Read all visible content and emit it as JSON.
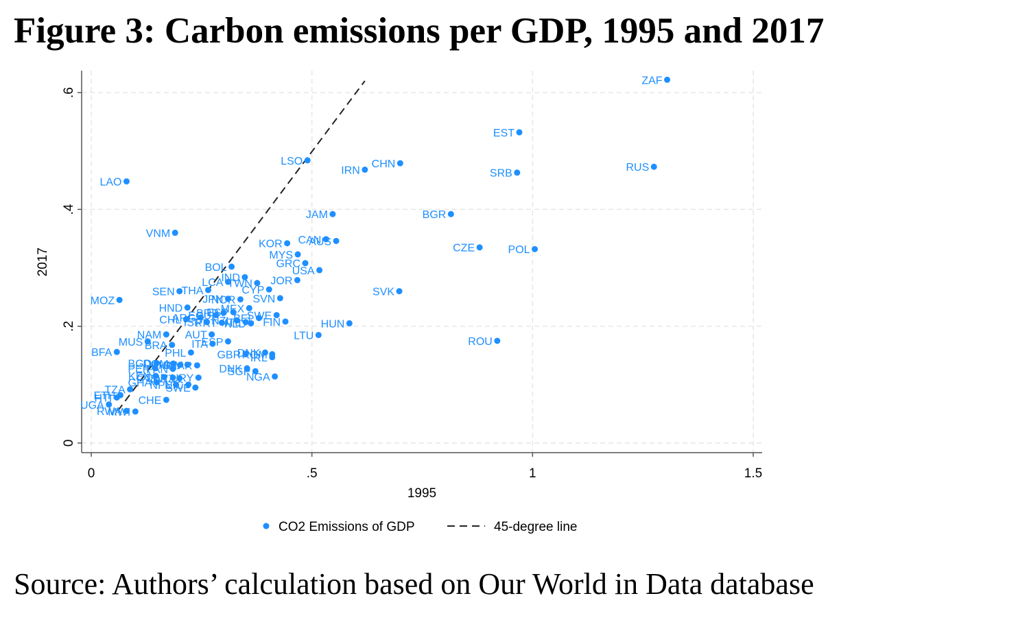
{
  "figure": {
    "title": "Figure 3: Carbon emissions per GDP, 1995 and 2017",
    "source": "Source: Authors’ calculation based on Our World in Data database"
  },
  "colors": {
    "points": "#1e8fff",
    "gridline": "#e6e6e6",
    "axis": "#555555",
    "reference_line": "#222222"
  },
  "chart_data": {
    "type": "scatter",
    "title": "",
    "xlabel": "1995",
    "ylabel": "2017",
    "xlim": [
      -0.05,
      1.5
    ],
    "ylim": [
      -0.02,
      0.63
    ],
    "xticks": [
      0,
      0.5,
      1,
      1.5
    ],
    "xtick_labels": [
      "0",
      ".5",
      "1",
      "1.5"
    ],
    "yticks": [
      0,
      0.2,
      0.4,
      0.6
    ],
    "ytick_labels": [
      "0",
      ".2",
      ".4",
      ".6"
    ],
    "grid": true,
    "legend": {
      "position": "bottom",
      "entries": [
        "CO2 Emissions of GDP",
        "45-degree line"
      ]
    },
    "reference_line": {
      "name": "45-degree line",
      "x": [
        0.06,
        0.62
      ],
      "y": [
        0.055,
        0.62
      ]
    },
    "series": [
      {
        "name": "CO2 Emissions of GDP",
        "points": [
          {
            "label": "ZAF",
            "x": 1.305,
            "y": 0.622
          },
          {
            "label": "EST",
            "x": 0.97,
            "y": 0.532
          },
          {
            "label": "RUS",
            "x": 1.275,
            "y": 0.473
          },
          {
            "label": "SRB",
            "x": 0.965,
            "y": 0.463
          },
          {
            "label": "CHN",
            "x": 0.7,
            "y": 0.479
          },
          {
            "label": "IRN",
            "x": 0.62,
            "y": 0.468
          },
          {
            "label": "LSO",
            "x": 0.49,
            "y": 0.484
          },
          {
            "label": "LAO",
            "x": 0.08,
            "y": 0.448
          },
          {
            "label": "BGR",
            "x": 0.815,
            "y": 0.392
          },
          {
            "label": "JAM",
            "x": 0.547,
            "y": 0.392
          },
          {
            "label": "VNM",
            "x": 0.19,
            "y": 0.36
          },
          {
            "label": "CZE",
            "x": 0.88,
            "y": 0.335
          },
          {
            "label": "POL",
            "x": 1.005,
            "y": 0.332
          },
          {
            "label": "KOR",
            "x": 0.444,
            "y": 0.342
          },
          {
            "label": "CAN",
            "x": 0.532,
            "y": 0.349
          },
          {
            "label": "AUS",
            "x": 0.555,
            "y": 0.346
          },
          {
            "label": "MYS",
            "x": 0.468,
            "y": 0.323
          },
          {
            "label": "GRC",
            "x": 0.485,
            "y": 0.308
          },
          {
            "label": "USA",
            "x": 0.517,
            "y": 0.296
          },
          {
            "label": "BOL",
            "x": 0.318,
            "y": 0.302
          },
          {
            "label": "JOR",
            "x": 0.467,
            "y": 0.279
          },
          {
            "label": "IND",
            "x": 0.348,
            "y": 0.284
          },
          {
            "label": "LCA",
            "x": 0.31,
            "y": 0.276
          },
          {
            "label": "TWN",
            "x": 0.376,
            "y": 0.274
          },
          {
            "label": "CYP",
            "x": 0.403,
            "y": 0.263
          },
          {
            "label": "SVK",
            "x": 0.698,
            "y": 0.26
          },
          {
            "label": "SEN",
            "x": 0.2,
            "y": 0.26
          },
          {
            "label": "THA",
            "x": 0.265,
            "y": 0.262
          },
          {
            "label": "SVN",
            "x": 0.428,
            "y": 0.248
          },
          {
            "label": "JPN",
            "x": 0.31,
            "y": 0.247
          },
          {
            "label": "NOR",
            "x": 0.338,
            "y": 0.246
          },
          {
            "label": "MOZ",
            "x": 0.064,
            "y": 0.245
          },
          {
            "label": "HND",
            "x": 0.218,
            "y": 0.232
          },
          {
            "label": "MEX",
            "x": 0.358,
            "y": 0.231
          },
          {
            "label": "CHL",
            "x": 0.215,
            "y": 0.212
          },
          {
            "label": "ARG",
            "x": 0.248,
            "y": 0.215
          },
          {
            "label": "ECU",
            "x": 0.283,
            "y": 0.219
          },
          {
            "label": "BRB",
            "x": 0.3,
            "y": 0.223
          },
          {
            "label": "ESP",
            "x": 0.322,
            "y": 0.224
          },
          {
            "label": "ISR",
            "x": 0.262,
            "y": 0.207
          },
          {
            "label": "PRT",
            "x": 0.296,
            "y": 0.206
          },
          {
            "label": "NZL",
            "x": 0.33,
            "y": 0.21
          },
          {
            "label": "ITL",
            "x": 0.35,
            "y": 0.207
          },
          {
            "label": "NLD",
            "x": 0.362,
            "y": 0.205
          },
          {
            "label": "BEL",
            "x": 0.38,
            "y": 0.214
          },
          {
            "label": "FIN",
            "x": 0.44,
            "y": 0.208
          },
          {
            "label": "SWE",
            "x": 0.42,
            "y": 0.219
          },
          {
            "label": "HUN",
            "x": 0.585,
            "y": 0.205
          },
          {
            "label": "NAM",
            "x": 0.17,
            "y": 0.186
          },
          {
            "label": "AUT",
            "x": 0.273,
            "y": 0.186
          },
          {
            "label": "LTU",
            "x": 0.515,
            "y": 0.185
          },
          {
            "label": "MUS",
            "x": 0.128,
            "y": 0.174
          },
          {
            "label": "BRA",
            "x": 0.183,
            "y": 0.168
          },
          {
            "label": "ITA",
            "x": 0.275,
            "y": 0.17
          },
          {
            "label": "ESP",
            "x": 0.31,
            "y": 0.174
          },
          {
            "label": "ROU",
            "x": 0.92,
            "y": 0.175
          },
          {
            "label": "BFA",
            "x": 0.058,
            "y": 0.156
          },
          {
            "label": "PHL",
            "x": 0.226,
            "y": 0.155
          },
          {
            "label": "GBR",
            "x": 0.35,
            "y": 0.152
          },
          {
            "label": "DNK",
            "x": 0.394,
            "y": 0.155
          },
          {
            "label": "ROM",
            "x": 0.41,
            "y": 0.152
          },
          {
            "label": "IRL",
            "x": 0.41,
            "y": 0.147
          },
          {
            "label": "BGD",
            "x": 0.148,
            "y": 0.137
          },
          {
            "label": "DOM",
            "x": 0.186,
            "y": 0.136
          },
          {
            "label": "KHM",
            "x": 0.202,
            "y": 0.134
          },
          {
            "label": "SLV",
            "x": 0.218,
            "y": 0.134
          },
          {
            "label": "MAR",
            "x": 0.24,
            "y": 0.133
          },
          {
            "label": "PER",
            "x": 0.145,
            "y": 0.128
          },
          {
            "label": "PAN",
            "x": 0.185,
            "y": 0.127
          },
          {
            "label": "DNK",
            "x": 0.353,
            "y": 0.128
          },
          {
            "label": "SGP",
            "x": 0.372,
            "y": 0.123
          },
          {
            "label": "NGA",
            "x": 0.416,
            "y": 0.114
          },
          {
            "label": "KEN",
            "x": 0.146,
            "y": 0.115
          },
          {
            "label": "COL",
            "x": 0.165,
            "y": 0.113
          },
          {
            "label": "LBR",
            "x": 0.185,
            "y": 0.112
          },
          {
            "label": "SWZ",
            "x": 0.2,
            "y": 0.111
          },
          {
            "label": "URY",
            "x": 0.243,
            "y": 0.112
          },
          {
            "label": "GHA",
            "x": 0.148,
            "y": 0.104
          },
          {
            "label": "NPL",
            "x": 0.192,
            "y": 0.1
          },
          {
            "label": "NIC",
            "x": 0.22,
            "y": 0.1
          },
          {
            "label": "SWE",
            "x": 0.236,
            "y": 0.095
          },
          {
            "label": "TZA",
            "x": 0.088,
            "y": 0.092
          },
          {
            "label": "ETH",
            "x": 0.066,
            "y": 0.082
          },
          {
            "label": "HTI",
            "x": 0.058,
            "y": 0.078
          },
          {
            "label": "CHE",
            "x": 0.17,
            "y": 0.074
          },
          {
            "label": "UGA",
            "x": 0.04,
            "y": 0.066
          },
          {
            "label": "RWA",
            "x": 0.08,
            "y": 0.055
          },
          {
            "label": "MWI",
            "x": 0.1,
            "y": 0.054
          }
        ]
      }
    ]
  }
}
